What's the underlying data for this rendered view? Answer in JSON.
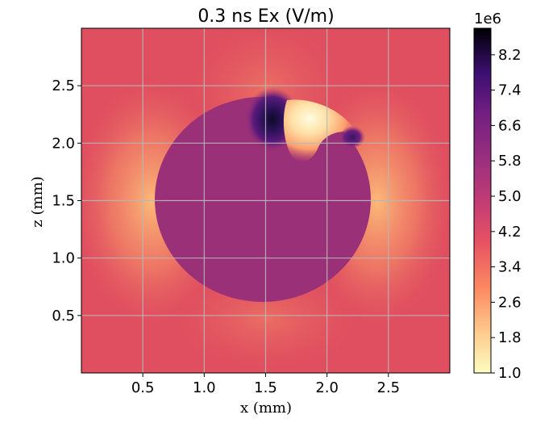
{
  "chart_data": {
    "type": "heatmap",
    "title": "0.3 ns Ex (V/m)",
    "xlabel": "x (mm)",
    "ylabel": "z (mm)",
    "xlim": [
      0.0,
      3.0
    ],
    "ylim": [
      0.0,
      3.0
    ],
    "xticks": [
      0.5,
      1.0,
      1.5,
      2.0,
      2.5
    ],
    "xtick_labels": [
      "0.5",
      "1.0",
      "1.5",
      "2.0",
      "2.5"
    ],
    "yticks": [
      0.5,
      1.0,
      1.5,
      2.0,
      2.5
    ],
    "ytick_labels": [
      "0.5",
      "1.0",
      "1.5",
      "2.0",
      "2.5"
    ],
    "grid": true,
    "colormap": "magma_r",
    "colorbar": {
      "exponent_label": "1e6",
      "range": [
        1.0,
        8.8
      ],
      "ticks": [
        1.0,
        1.8,
        2.6,
        3.4,
        4.2,
        5.0,
        5.8,
        6.6,
        7.4,
        8.2
      ],
      "tick_labels": [
        "1.0",
        "1.8",
        "2.6",
        "3.4",
        "4.2",
        "5.0",
        "5.8",
        "6.6",
        "7.4",
        "8.2"
      ]
    },
    "field_regions": [
      {
        "name": "background",
        "value": 4.0
      },
      {
        "name": "droplet-interior",
        "center": [
          1.48,
          1.44
        ],
        "radii": [
          0.82,
          0.88
        ],
        "value": 5.1
      },
      {
        "name": "left-edge-low-field",
        "center": [
          0.62,
          1.5
        ],
        "value": 2.0
      },
      {
        "name": "right-edge-low-field",
        "center": [
          2.42,
          1.5
        ],
        "value": 2.1
      },
      {
        "name": "top-dark-peak",
        "center": [
          1.56,
          2.18
        ],
        "value": 8.3
      },
      {
        "name": "top-bright-crescent",
        "center": [
          1.82,
          2.12
        ],
        "value": 1.1
      },
      {
        "name": "right-dark-spot",
        "center": [
          2.22,
          2.0
        ],
        "value": 6.7
      }
    ],
    "colors": {
      "background": "#e04f5f",
      "droplet": "#9a3077",
      "peak": "#150b36",
      "crescent": "#fff0c6",
      "edge_low": "#fca470"
    }
  }
}
